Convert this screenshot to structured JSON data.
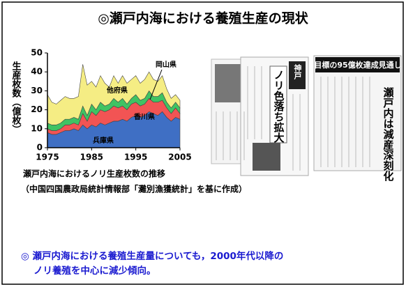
{
  "title": "◎瀬戸内海における養殖生産の現状",
  "chart_data": {
    "type": "area",
    "stacked": true,
    "y_label": "生産枚数（億枚）",
    "x": [
      1975,
      1976,
      1977,
      1978,
      1979,
      1980,
      1981,
      1982,
      1983,
      1984,
      1985,
      1986,
      1987,
      1988,
      1989,
      1990,
      1991,
      1992,
      1993,
      1994,
      1995,
      1996,
      1997,
      1998,
      1999,
      2000,
      2001,
      2002,
      2003,
      2004,
      2005
    ],
    "xlim": [
      1975,
      2005
    ],
    "xticks": [
      1975,
      1985,
      1995,
      2005
    ],
    "ylim": [
      0,
      50
    ],
    "yticks": [
      0,
      10,
      20,
      30,
      40,
      50
    ],
    "series": [
      {
        "name": "兵庫県",
        "color": "#3f6fc4",
        "values": [
          8,
          7,
          7,
          8,
          9,
          9,
          10,
          9,
          12,
          10,
          12,
          11,
          13,
          12,
          13,
          14,
          14,
          15,
          14,
          16,
          17,
          16,
          17,
          19,
          18,
          17,
          19,
          16,
          14,
          16,
          15
        ]
      },
      {
        "name": "香川県",
        "color": "#f25454",
        "values": [
          2,
          2,
          2,
          2,
          3,
          3,
          3,
          3,
          6,
          4,
          7,
          6,
          7,
          7,
          7,
          8,
          7,
          7,
          6,
          7,
          7,
          6,
          6,
          7,
          6,
          7,
          6,
          5,
          4,
          5,
          3
        ]
      },
      {
        "name": "岡山県",
        "color": "#3fc363",
        "values": [
          3,
          3,
          3,
          3,
          3,
          3,
          3,
          3,
          4,
          3,
          4,
          3,
          4,
          3,
          3,
          4,
          3,
          4,
          3,
          3,
          4,
          3,
          3,
          4,
          3,
          3,
          4,
          3,
          3,
          3,
          3
        ]
      },
      {
        "name": "他府県",
        "color": "#f5ed84",
        "values": [
          15,
          12,
          11,
          12,
          12,
          11,
          10,
          12,
          22,
          16,
          12,
          12,
          14,
          12,
          9,
          12,
          10,
          12,
          11,
          10,
          10,
          9,
          10,
          10,
          9,
          8,
          9,
          7,
          5,
          4,
          4
        ]
      }
    ]
  },
  "caption": [
    "瀬戸内海におけるノリ生産枚数の推移",
    "（中国四国農政局統計情報部「灘別漁獲統計」を基に作成）"
  ],
  "newspapers": {
    "headline_1": "ノリ色落ち拡大",
    "paper_name": "神戸",
    "headline_2": "目標の95億枚達成見通し",
    "headline_3": "瀬戸内は減産深刻化"
  },
  "note": [
    "◎ 瀬戸内海における養殖生産量についても，2000年代以降の",
    "ノリ養殖を中心に減少傾向。"
  ]
}
